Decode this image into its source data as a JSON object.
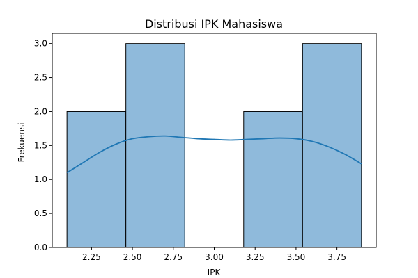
{
  "chart_data": {
    "type": "bar",
    "title": "Distribusi IPK Mahasiswa",
    "xlabel": "IPK",
    "ylabel": "Frekuensi",
    "xlim": [
      2.01,
      3.99
    ],
    "ylim": [
      0,
      3.15
    ],
    "xticks": [
      "2.25",
      "2.50",
      "2.75",
      "3.00",
      "3.25",
      "3.50",
      "3.75"
    ],
    "xtick_values": [
      2.25,
      2.5,
      2.75,
      3.0,
      3.25,
      3.5,
      3.75
    ],
    "yticks": [
      "0.0",
      "0.5",
      "1.0",
      "1.5",
      "2.0",
      "2.5",
      "3.0"
    ],
    "ytick_values": [
      0.0,
      0.5,
      1.0,
      1.5,
      2.0,
      2.5,
      3.0
    ],
    "bins": [
      {
        "start": 2.1,
        "end": 2.46,
        "value": 2
      },
      {
        "start": 2.46,
        "end": 2.82,
        "value": 3
      },
      {
        "start": 2.82,
        "end": 3.18,
        "value": 0
      },
      {
        "start": 3.18,
        "end": 3.54,
        "value": 2
      },
      {
        "start": 3.54,
        "end": 3.9,
        "value": 3
      }
    ],
    "kde": {
      "x": [
        2.1,
        2.2,
        2.3,
        2.4,
        2.5,
        2.6,
        2.7,
        2.8,
        2.9,
        3.0,
        3.1,
        3.2,
        3.3,
        3.4,
        3.5,
        3.6,
        3.7,
        3.8,
        3.9
      ],
      "y": [
        1.1,
        1.25,
        1.4,
        1.52,
        1.6,
        1.63,
        1.64,
        1.62,
        1.6,
        1.59,
        1.58,
        1.59,
        1.6,
        1.61,
        1.6,
        1.56,
        1.48,
        1.37,
        1.23
      ]
    },
    "colors": {
      "bar_fill": "#8fbadb",
      "bar_edge": "#000000",
      "kde_line": "#1f77b4"
    },
    "grid": false
  }
}
